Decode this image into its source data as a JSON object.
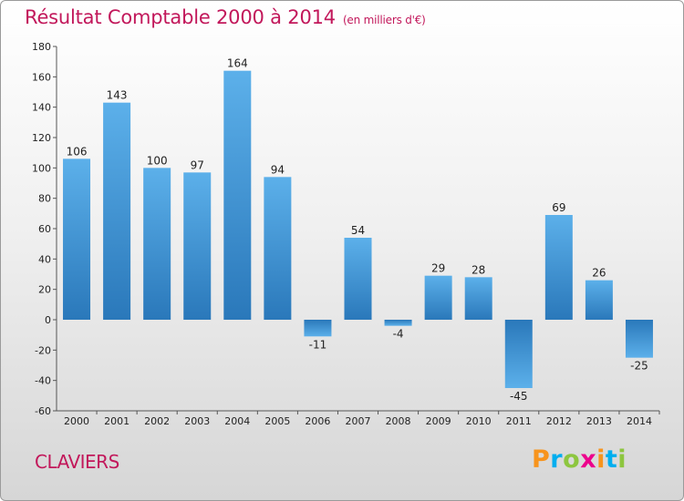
{
  "header": {
    "title": "Résultat Comptable 2000 à 2014",
    "subtitle": "(en milliers d'€)"
  },
  "footer": {
    "commune": "CLAVIERS",
    "logo_letters": [
      "P",
      "r",
      "o",
      "x",
      "i",
      "t",
      "i"
    ],
    "logo_colors": [
      "#f7941d",
      "#00aeef",
      "#8dc63f",
      "#ec008c",
      "#f7941d",
      "#00aeef",
      "#8dc63f"
    ]
  },
  "chart_data": {
    "type": "bar",
    "title": "Résultat Comptable 2000 à 2014",
    "subtitle": "(en milliers d'€)",
    "categories": [
      "2000",
      "2001",
      "2002",
      "2003",
      "2004",
      "2005",
      "2006",
      "2007",
      "2008",
      "2009",
      "2010",
      "2011",
      "2012",
      "2013",
      "2014"
    ],
    "values": [
      106,
      143,
      100,
      97,
      164,
      94,
      -11,
      54,
      -4,
      29,
      28,
      -45,
      69,
      26,
      -25
    ],
    "value_labels": [
      "106",
      "143",
      "100",
      "97",
      "164",
      "94",
      "-11",
      "54",
      "-4",
      "29",
      "28",
      "-45",
      "69",
      "26",
      "-25"
    ],
    "y_ticks": [
      "180",
      "160",
      "140",
      "120",
      "100",
      "80",
      "60",
      "40",
      "20",
      "0",
      "-20",
      "-40",
      "-60"
    ],
    "ylim": [
      -60,
      180
    ],
    "grid": false,
    "legend": "none",
    "colors": {
      "bar_light": "#5aaee8",
      "bar_dark": "#2a79bb",
      "axis": "#555555"
    }
  }
}
